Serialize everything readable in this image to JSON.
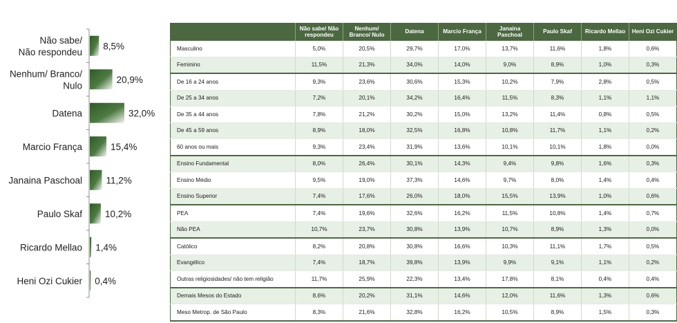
{
  "chart_data": [
    {
      "type": "bar",
      "orientation": "horizontal",
      "categories": [
        "Não sabe/\nNão respondeu",
        "Nenhum/ Branco/\nNulo",
        "Datena",
        "Marcio França",
        "Janaina Paschoal",
        "Paulo Skaf",
        "Ricardo Mellao",
        "Heni Ozi Cukier"
      ],
      "values": [
        8.5,
        20.9,
        32.0,
        15.4,
        11.2,
        10.2,
        1.4,
        0.4
      ],
      "value_labels": [
        "8,5%",
        "20,9%",
        "32,0%",
        "15,4%",
        "11,2%",
        "10,2%",
        "1,4%",
        "0,4%"
      ],
      "xlim": [
        0,
        32.0
      ],
      "title": "",
      "xlabel": "",
      "ylabel": "",
      "grid": false,
      "legend": "none",
      "colors": {
        "bar": "#3f6b35",
        "bar_highlight": "#ffffff",
        "axis": "#8c8c8c"
      }
    },
    {
      "type": "table",
      "columns": [
        "",
        "Não sabe/ Não respondeu",
        "Nenhum/ Branco/ Nulo",
        "Datena",
        "Marcio França",
        "Janaina Paschoal",
        "Paulo Skaf",
        "Ricardo Mellao",
        "Heni Ozi Cukier"
      ],
      "groups": [
        {
          "rows": [
            {
              "label": "Masculino",
              "values": [
                "5,0%",
                "20,5%",
                "29,7%",
                "17,0%",
                "13,7%",
                "11,6%",
                "1,8%",
                "0,6%"
              ]
            },
            {
              "label": "Feminino",
              "values": [
                "11,5%",
                "21,3%",
                "34,0%",
                "14,0%",
                "9,0%",
                "8,9%",
                "1,0%",
                "0,3%"
              ]
            }
          ]
        },
        {
          "rows": [
            {
              "label": "De 16 a 24 anos",
              "values": [
                "9,3%",
                "23,6%",
                "30,6%",
                "15,3%",
                "10,2%",
                "7,9%",
                "2,8%",
                "0,5%"
              ]
            },
            {
              "label": "De 25 a 34 anos",
              "values": [
                "7,2%",
                "20,1%",
                "34,2%",
                "16,4%",
                "11,5%",
                "8,3%",
                "1,1%",
                "1,1%"
              ]
            },
            {
              "label": "De 35 a 44 anos",
              "values": [
                "7,8%",
                "21,2%",
                "30,2%",
                "15,0%",
                "13,2%",
                "11,4%",
                "0,8%",
                "0,5%"
              ]
            },
            {
              "label": "De 45 a 59 anos",
              "values": [
                "8,9%",
                "18,0%",
                "32,5%",
                "16,8%",
                "10,8%",
                "11,7%",
                "1,1%",
                "0,2%"
              ]
            },
            {
              "label": "60 anos ou mais",
              "values": [
                "9,3%",
                "23,4%",
                "31,9%",
                "13,6%",
                "10,1%",
                "10,1%",
                "1,8%",
                "0,0%"
              ]
            }
          ]
        },
        {
          "rows": [
            {
              "label": "Ensino Fundamental",
              "values": [
                "8,0%",
                "26,4%",
                "30,1%",
                "14,3%",
                "9,4%",
                "9,8%",
                "1,6%",
                "0,3%"
              ]
            },
            {
              "label": "Ensino Médio",
              "values": [
                "9,5%",
                "19,0%",
                "37,3%",
                "14,6%",
                "9,7%",
                "8,0%",
                "1,4%",
                "0,4%"
              ]
            },
            {
              "label": "Ensino Superior",
              "values": [
                "7,4%",
                "17,6%",
                "26,0%",
                "18,0%",
                "15,5%",
                "13,9%",
                "1,0%",
                "0,6%"
              ]
            }
          ]
        },
        {
          "rows": [
            {
              "label": "PEA",
              "values": [
                "7,4%",
                "19,6%",
                "32,6%",
                "16,2%",
                "11,5%",
                "10,8%",
                "1,4%",
                "0,7%"
              ]
            },
            {
              "label": "Não PEA",
              "values": [
                "10,7%",
                "23,7%",
                "30,8%",
                "13,9%",
                "10,7%",
                "8,9%",
                "1,3%",
                "0,0%"
              ]
            }
          ]
        },
        {
          "rows": [
            {
              "label": "Católico",
              "values": [
                "8,2%",
                "20,8%",
                "30,8%",
                "16,6%",
                "10,3%",
                "11,1%",
                "1,7%",
                "0,5%"
              ]
            },
            {
              "label": "Evangélico",
              "values": [
                "7,4%",
                "18,7%",
                "39,8%",
                "13,9%",
                "9,9%",
                "9,1%",
                "1,1%",
                "0,2%"
              ]
            },
            {
              "label": "Outras religiosidades/ não tem religião",
              "values": [
                "11,7%",
                "25,9%",
                "22,3%",
                "13,4%",
                "17,8%",
                "8,1%",
                "0,4%",
                "0,4%"
              ]
            }
          ]
        },
        {
          "rows": [
            {
              "label": "Demais Mesos do Estado",
              "values": [
                "8,6%",
                "20,2%",
                "31,1%",
                "14,6%",
                "12,0%",
                "11,6%",
                "1,3%",
                "0,6%"
              ]
            },
            {
              "label": "Meso Metrop. de São Paulo",
              "values": [
                "8,3%",
                "21,6%",
                "32,8%",
                "16,2%",
                "10,5%",
                "8,9%",
                "1,5%",
                "0,3%"
              ]
            }
          ]
        }
      ]
    }
  ]
}
